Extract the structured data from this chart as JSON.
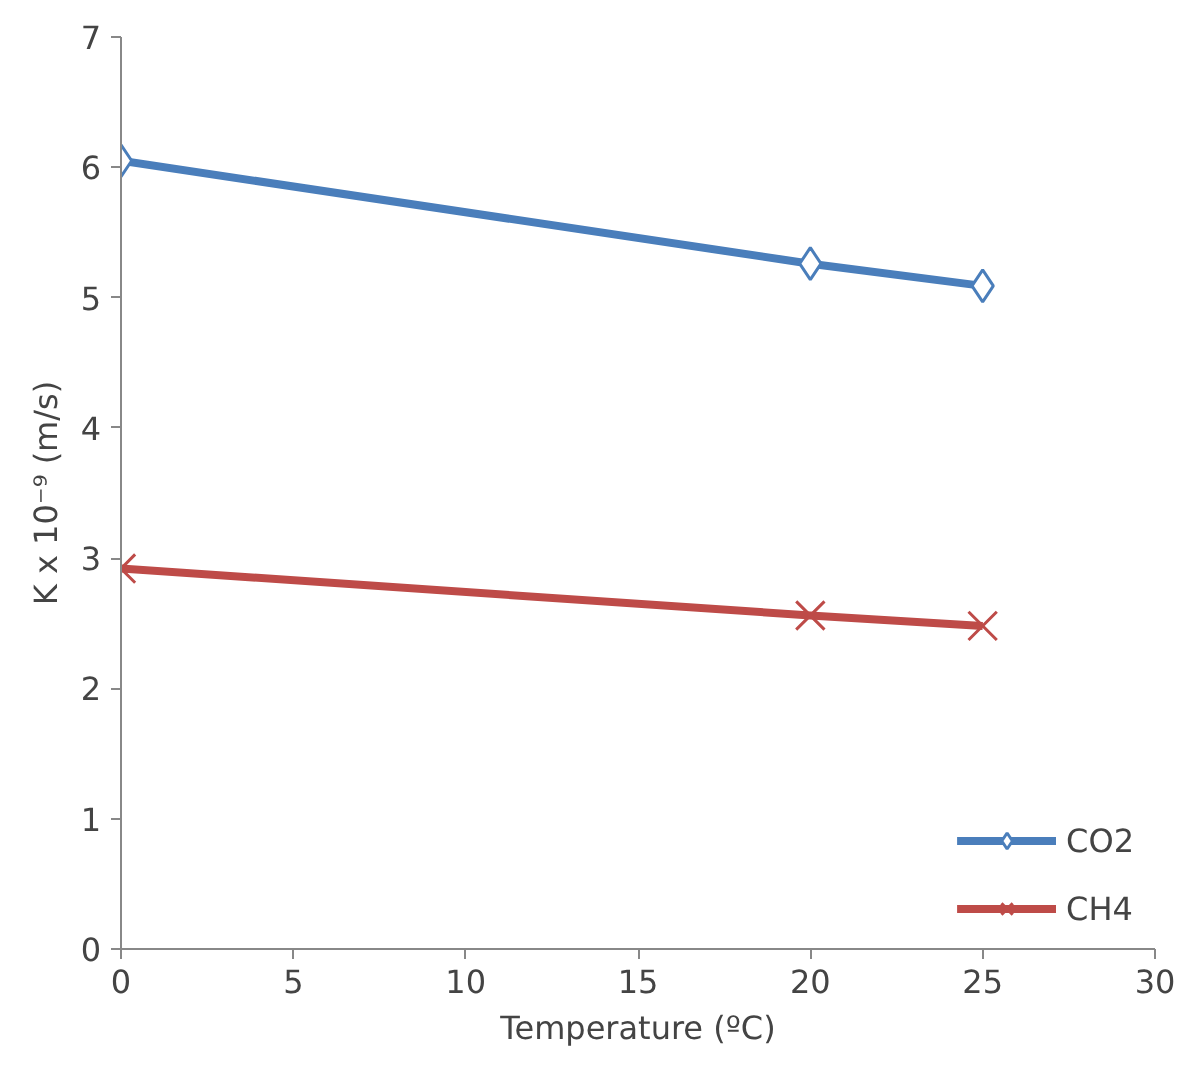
{
  "chart_data": {
    "type": "line",
    "xlabel": "Temperature (ºC)",
    "ylabel": "K x 10⁻⁹ (m/s)",
    "xlim": [
      0,
      30
    ],
    "xticks": [
      0,
      5,
      10,
      15,
      20,
      25,
      30
    ],
    "ylim": [
      0,
      7
    ],
    "yticks": [
      0,
      1,
      2,
      3,
      4,
      5,
      6,
      7
    ],
    "grid": false,
    "legend": "bottom right",
    "line_style": "solid",
    "series": [
      {
        "name": "CO2",
        "color": "#4a7ebb",
        "marker": "diamond",
        "x": [
          0,
          20,
          25
        ],
        "values": [
          6.05,
          5.26,
          5.09
        ]
      },
      {
        "name": "CH4",
        "color": "#be4b48",
        "marker": "cross",
        "x": [
          0,
          20,
          25
        ],
        "values": [
          2.92,
          2.56,
          2.48
        ]
      }
    ]
  }
}
